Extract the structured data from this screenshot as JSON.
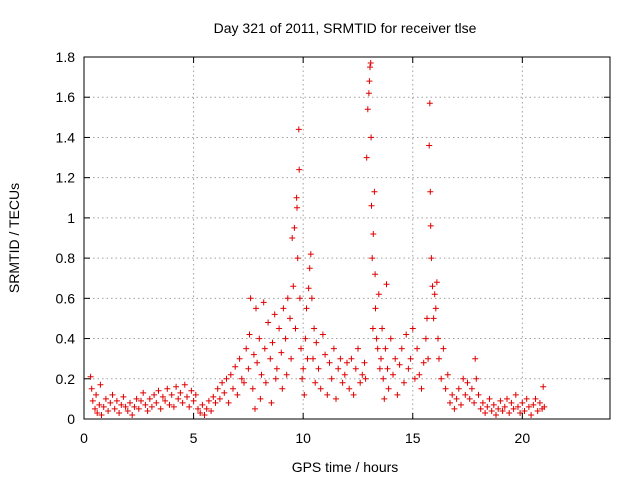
{
  "chart_data": {
    "type": "scatter",
    "title": "Day 321 of 2011, SRMTID for receiver tlse",
    "xlabel": "GPS time / hours",
    "ylabel": "SRMTID / TECUs",
    "xlim": [
      0,
      24
    ],
    "ylim": [
      0,
      1.8
    ],
    "xticks": [
      0,
      5,
      10,
      15,
      20
    ],
    "yticks": [
      0,
      0.2,
      0.4,
      0.6,
      0.8,
      1,
      1.2,
      1.4,
      1.6,
      1.8
    ],
    "xtick_labels": [
      "0",
      "5",
      "10",
      "15",
      "20"
    ],
    "ytick_labels": [
      "0",
      "0.2",
      "0.4",
      "0.6",
      "0.8",
      "1",
      "1.2",
      "1.4",
      "1.6",
      "1.8"
    ],
    "grid": true,
    "marker": "+",
    "color": "#e00000",
    "series": [
      {
        "name": "SRMTID",
        "points": [
          [
            0.3,
            0.21
          ],
          [
            0.35,
            0.15
          ],
          [
            0.4,
            0.09
          ],
          [
            0.5,
            0.05
          ],
          [
            0.55,
            0.12
          ],
          [
            0.6,
            0.03
          ],
          [
            0.7,
            0.07
          ],
          [
            0.75,
            0.17
          ],
          [
            0.8,
            0.02
          ],
          [
            0.9,
            0.06
          ],
          [
            1.0,
            0.1
          ],
          [
            1.1,
            0.04
          ],
          [
            1.2,
            0.08
          ],
          [
            1.3,
            0.12
          ],
          [
            1.4,
            0.05
          ],
          [
            1.5,
            0.09
          ],
          [
            1.6,
            0.03
          ],
          [
            1.7,
            0.07
          ],
          [
            1.8,
            0.11
          ],
          [
            1.9,
            0.06
          ],
          [
            2.0,
            0.04
          ],
          [
            2.1,
            0.08
          ],
          [
            2.2,
            0.02
          ],
          [
            2.3,
            0.06
          ],
          [
            2.4,
            0.1
          ],
          [
            2.5,
            0.05
          ],
          [
            2.6,
            0.09
          ],
          [
            2.7,
            0.13
          ],
          [
            2.8,
            0.07
          ],
          [
            2.9,
            0.04
          ],
          [
            3.0,
            0.1
          ],
          [
            3.1,
            0.06
          ],
          [
            3.2,
            0.12
          ],
          [
            3.3,
            0.08
          ],
          [
            3.4,
            0.14
          ],
          [
            3.5,
            0.05
          ],
          [
            3.6,
            0.11
          ],
          [
            3.7,
            0.09
          ],
          [
            3.8,
            0.15
          ],
          [
            3.9,
            0.07
          ],
          [
            4.0,
            0.12
          ],
          [
            4.1,
            0.06
          ],
          [
            4.2,
            0.16
          ],
          [
            4.3,
            0.1
          ],
          [
            4.4,
            0.13
          ],
          [
            4.5,
            0.08
          ],
          [
            4.6,
            0.17
          ],
          [
            4.7,
            0.11
          ],
          [
            4.8,
            0.06
          ],
          [
            4.9,
            0.14
          ],
          [
            5.0,
            0.09
          ],
          [
            5.1,
            0.12
          ],
          [
            5.2,
            0.05
          ],
          [
            5.3,
            0.03
          ],
          [
            5.4,
            0.07
          ],
          [
            5.5,
            0.02
          ],
          [
            5.6,
            0.05
          ],
          [
            5.7,
            0.09
          ],
          [
            5.8,
            0.04
          ],
          [
            5.9,
            0.11
          ],
          [
            6.0,
            0.08
          ],
          [
            6.1,
            0.15
          ],
          [
            6.2,
            0.1
          ],
          [
            6.3,
            0.18
          ],
          [
            6.4,
            0.13
          ],
          [
            6.5,
            0.2
          ],
          [
            6.6,
            0.08
          ],
          [
            6.7,
            0.22
          ],
          [
            6.8,
            0.15
          ],
          [
            6.9,
            0.26
          ],
          [
            7.0,
            0.12
          ],
          [
            7.1,
            0.3
          ],
          [
            7.2,
            0.2
          ],
          [
            7.3,
            0.18
          ],
          [
            7.4,
            0.35
          ],
          [
            7.5,
            0.25
          ],
          [
            7.55,
            0.42
          ],
          [
            7.6,
            0.6
          ],
          [
            7.7,
            0.15
          ],
          [
            7.75,
            0.32
          ],
          [
            7.8,
            0.05
          ],
          [
            7.85,
            0.55
          ],
          [
            7.9,
            0.28
          ],
          [
            8.0,
            0.4
          ],
          [
            8.05,
            0.1
          ],
          [
            8.1,
            0.22
          ],
          [
            8.2,
            0.58
          ],
          [
            8.25,
            0.35
          ],
          [
            8.3,
            0.18
          ],
          [
            8.4,
            0.48
          ],
          [
            8.5,
            0.3
          ],
          [
            8.55,
            0.08
          ],
          [
            8.6,
            0.38
          ],
          [
            8.7,
            0.52
          ],
          [
            8.75,
            0.2
          ],
          [
            8.8,
            0.25
          ],
          [
            8.9,
            0.45
          ],
          [
            9.0,
            0.33
          ],
          [
            9.05,
            0.15
          ],
          [
            9.1,
            0.55
          ],
          [
            9.2,
            0.4
          ],
          [
            9.25,
            0.22
          ],
          [
            9.3,
            0.6
          ],
          [
            9.4,
            0.5
          ],
          [
            9.45,
            0.3
          ],
          [
            9.5,
            0.9
          ],
          [
            9.55,
            0.66
          ],
          [
            9.6,
            0.95
          ],
          [
            9.65,
            0.45
          ],
          [
            9.7,
            1.1
          ],
          [
            9.72,
            1.05
          ],
          [
            9.75,
            0.8
          ],
          [
            9.8,
            1.44
          ],
          [
            9.82,
            1.24
          ],
          [
            9.85,
            0.6
          ],
          [
            9.9,
            0.35
          ],
          [
            9.95,
            0.2
          ],
          [
            10.0,
            0.25
          ],
          [
            10.05,
            0.12
          ],
          [
            10.1,
            0.4
          ],
          [
            10.15,
            0.55
          ],
          [
            10.2,
            0.3
          ],
          [
            10.25,
            0.65
          ],
          [
            10.3,
            0.75
          ],
          [
            10.35,
            0.82
          ],
          [
            10.4,
            0.6
          ],
          [
            10.45,
            0.3
          ],
          [
            10.5,
            0.45
          ],
          [
            10.55,
            0.18
          ],
          [
            10.6,
            0.38
          ],
          [
            10.7,
            0.25
          ],
          [
            10.8,
            0.15
          ],
          [
            10.9,
            0.42
          ],
          [
            11.0,
            0.32
          ],
          [
            11.1,
            0.12
          ],
          [
            11.2,
            0.28
          ],
          [
            11.3,
            0.2
          ],
          [
            11.4,
            0.35
          ],
          [
            11.5,
            0.1
          ],
          [
            11.6,
            0.25
          ],
          [
            11.7,
            0.3
          ],
          [
            11.8,
            0.18
          ],
          [
            11.9,
            0.22
          ],
          [
            12.0,
            0.28
          ],
          [
            12.1,
            0.15
          ],
          [
            12.2,
            0.3
          ],
          [
            12.3,
            0.12
          ],
          [
            12.4,
            0.25
          ],
          [
            12.5,
            0.35
          ],
          [
            12.6,
            0.18
          ],
          [
            12.7,
            0.22
          ],
          [
            12.8,
            0.28
          ],
          [
            12.85,
            0.2
          ],
          [
            12.9,
            1.3
          ],
          [
            12.95,
            1.54
          ],
          [
            13.0,
            1.62
          ],
          [
            13.02,
            1.68
          ],
          [
            13.05,
            1.75
          ],
          [
            13.08,
            1.77
          ],
          [
            13.1,
            1.4
          ],
          [
            13.12,
            1.06
          ],
          [
            13.15,
            0.8
          ],
          [
            13.18,
            0.45
          ],
          [
            13.2,
            0.92
          ],
          [
            13.25,
            1.13
          ],
          [
            13.28,
            0.72
          ],
          [
            13.3,
            0.55
          ],
          [
            13.35,
            0.4
          ],
          [
            13.4,
            0.35
          ],
          [
            13.45,
            0.62
          ],
          [
            13.5,
            0.25
          ],
          [
            13.55,
            0.3
          ],
          [
            13.6,
            0.45
          ],
          [
            13.65,
            0.2
          ],
          [
            13.7,
            0.1
          ],
          [
            13.75,
            0.35
          ],
          [
            13.8,
            0.67
          ],
          [
            13.85,
            0.25
          ],
          [
            13.9,
            0.15
          ],
          [
            14.0,
            0.4
          ],
          [
            14.1,
            0.22
          ],
          [
            14.2,
            0.3
          ],
          [
            14.3,
            0.12
          ],
          [
            14.4,
            0.27
          ],
          [
            14.5,
            0.35
          ],
          [
            14.6,
            0.18
          ],
          [
            14.7,
            0.42
          ],
          [
            14.8,
            0.25
          ],
          [
            14.9,
            0.3
          ],
          [
            15.0,
            0.45
          ],
          [
            15.1,
            0.2
          ],
          [
            15.2,
            0.35
          ],
          [
            15.3,
            0.22
          ],
          [
            15.4,
            0.15
          ],
          [
            15.5,
            0.28
          ],
          [
            15.6,
            0.4
          ],
          [
            15.65,
            0.5
          ],
          [
            15.7,
            0.3
          ],
          [
            15.75,
            1.36
          ],
          [
            15.78,
            1.57
          ],
          [
            15.8,
            1.13
          ],
          [
            15.82,
            0.96
          ],
          [
            15.85,
            0.8
          ],
          [
            15.9,
            0.66
          ],
          [
            15.95,
            0.5
          ],
          [
            16.0,
            0.62
          ],
          [
            16.05,
            0.55
          ],
          [
            16.1,
            0.68
          ],
          [
            16.15,
            0.4
          ],
          [
            16.2,
            0.3
          ],
          [
            16.3,
            0.2
          ],
          [
            16.4,
            0.35
          ],
          [
            16.5,
            0.15
          ],
          [
            16.6,
            0.22
          ],
          [
            16.7,
            0.08
          ],
          [
            16.8,
            0.12
          ],
          [
            16.9,
            0.05
          ],
          [
            17.0,
            0.1
          ],
          [
            17.1,
            0.15
          ],
          [
            17.2,
            0.07
          ],
          [
            17.3,
            0.2
          ],
          [
            17.4,
            0.12
          ],
          [
            17.5,
            0.18
          ],
          [
            17.6,
            0.1
          ],
          [
            17.7,
            0.15
          ],
          [
            17.8,
            0.08
          ],
          [
            17.85,
            0.3
          ],
          [
            17.9,
            0.2
          ],
          [
            18.0,
            0.12
          ],
          [
            18.1,
            0.05
          ],
          [
            18.2,
            0.08
          ],
          [
            18.3,
            0.03
          ],
          [
            18.4,
            0.06
          ],
          [
            18.5,
            0.1
          ],
          [
            18.6,
            0.04
          ],
          [
            18.7,
            0.07
          ],
          [
            18.8,
            0.02
          ],
          [
            18.9,
            0.05
          ],
          [
            19.0,
            0.09
          ],
          [
            19.1,
            0.04
          ],
          [
            19.2,
            0.06
          ],
          [
            19.3,
            0.1
          ],
          [
            19.4,
            0.03
          ],
          [
            19.5,
            0.08
          ],
          [
            19.6,
            0.05
          ],
          [
            19.7,
            0.12
          ],
          [
            19.8,
            0.06
          ],
          [
            19.9,
            0.03
          ],
          [
            20.0,
            0.08
          ],
          [
            20.1,
            0.04
          ],
          [
            20.2,
            0.1
          ],
          [
            20.3,
            0.06
          ],
          [
            20.4,
            0.02
          ],
          [
            20.5,
            0.07
          ],
          [
            20.6,
            0.1
          ],
          [
            20.7,
            0.04
          ],
          [
            20.8,
            0.08
          ],
          [
            20.9,
            0.05
          ],
          [
            20.95,
            0.16
          ],
          [
            21.0,
            0.06
          ]
        ]
      }
    ]
  }
}
